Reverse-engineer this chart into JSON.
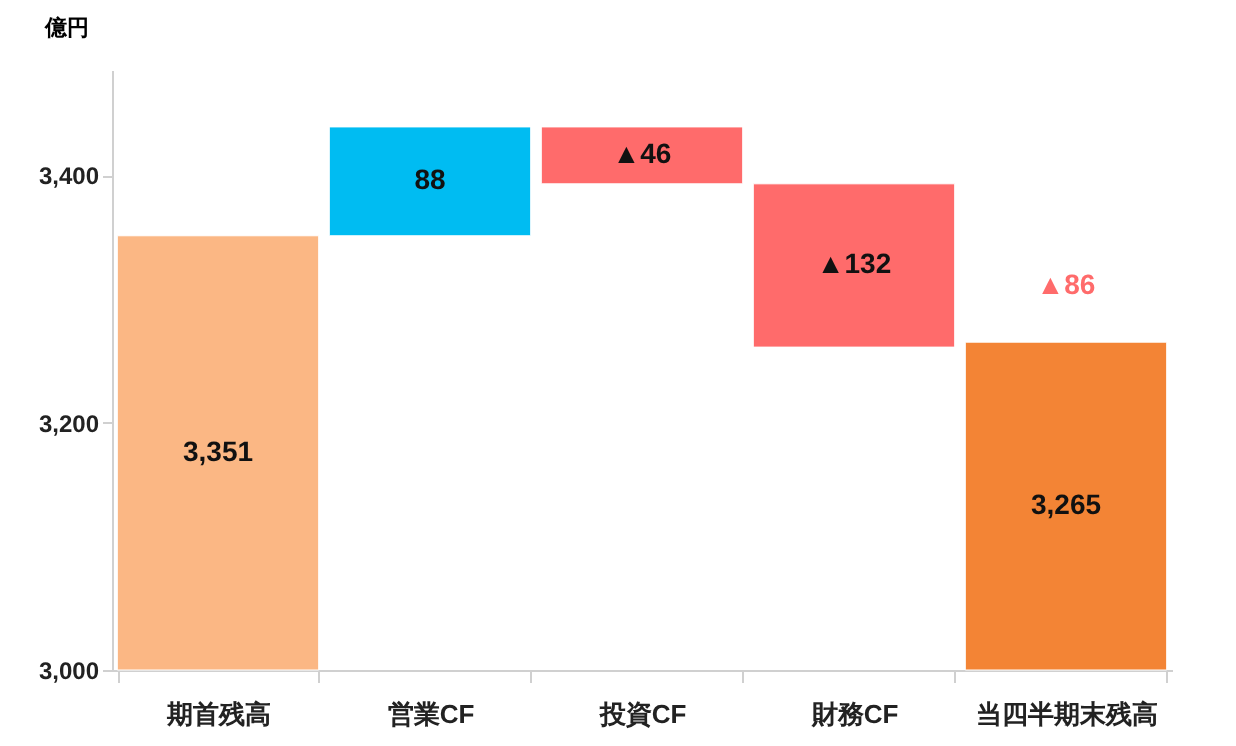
{
  "chart_data": {
    "type": "bar",
    "ylabel": "億円",
    "categories": [
      "期首残高",
      "営業CF",
      "投資CF",
      "財務CF",
      "当四半期末残高"
    ],
    "values": [
      351,
      88,
      -46,
      -132,
      265
    ],
    "base": [
      3000,
      3351,
      3439,
      3393,
      3000
    ],
    "colors": [
      "#fbb784",
      "#00bcf2",
      "#ff6b6b",
      "#ff6b6b",
      "#f38435"
    ],
    "value_labels": [
      "3,351",
      "88",
      "▲46",
      "▲132",
      "3,265"
    ],
    "annotations": [
      "▲86"
    ],
    "ylim": [
      3000,
      3485
    ],
    "yticks": [
      {
        "value": 3000,
        "label": "3,000"
      },
      {
        "value": 3200,
        "label": "3,200"
      },
      {
        "value": 3400,
        "label": "3,400"
      }
    ],
    "grid": false
  }
}
